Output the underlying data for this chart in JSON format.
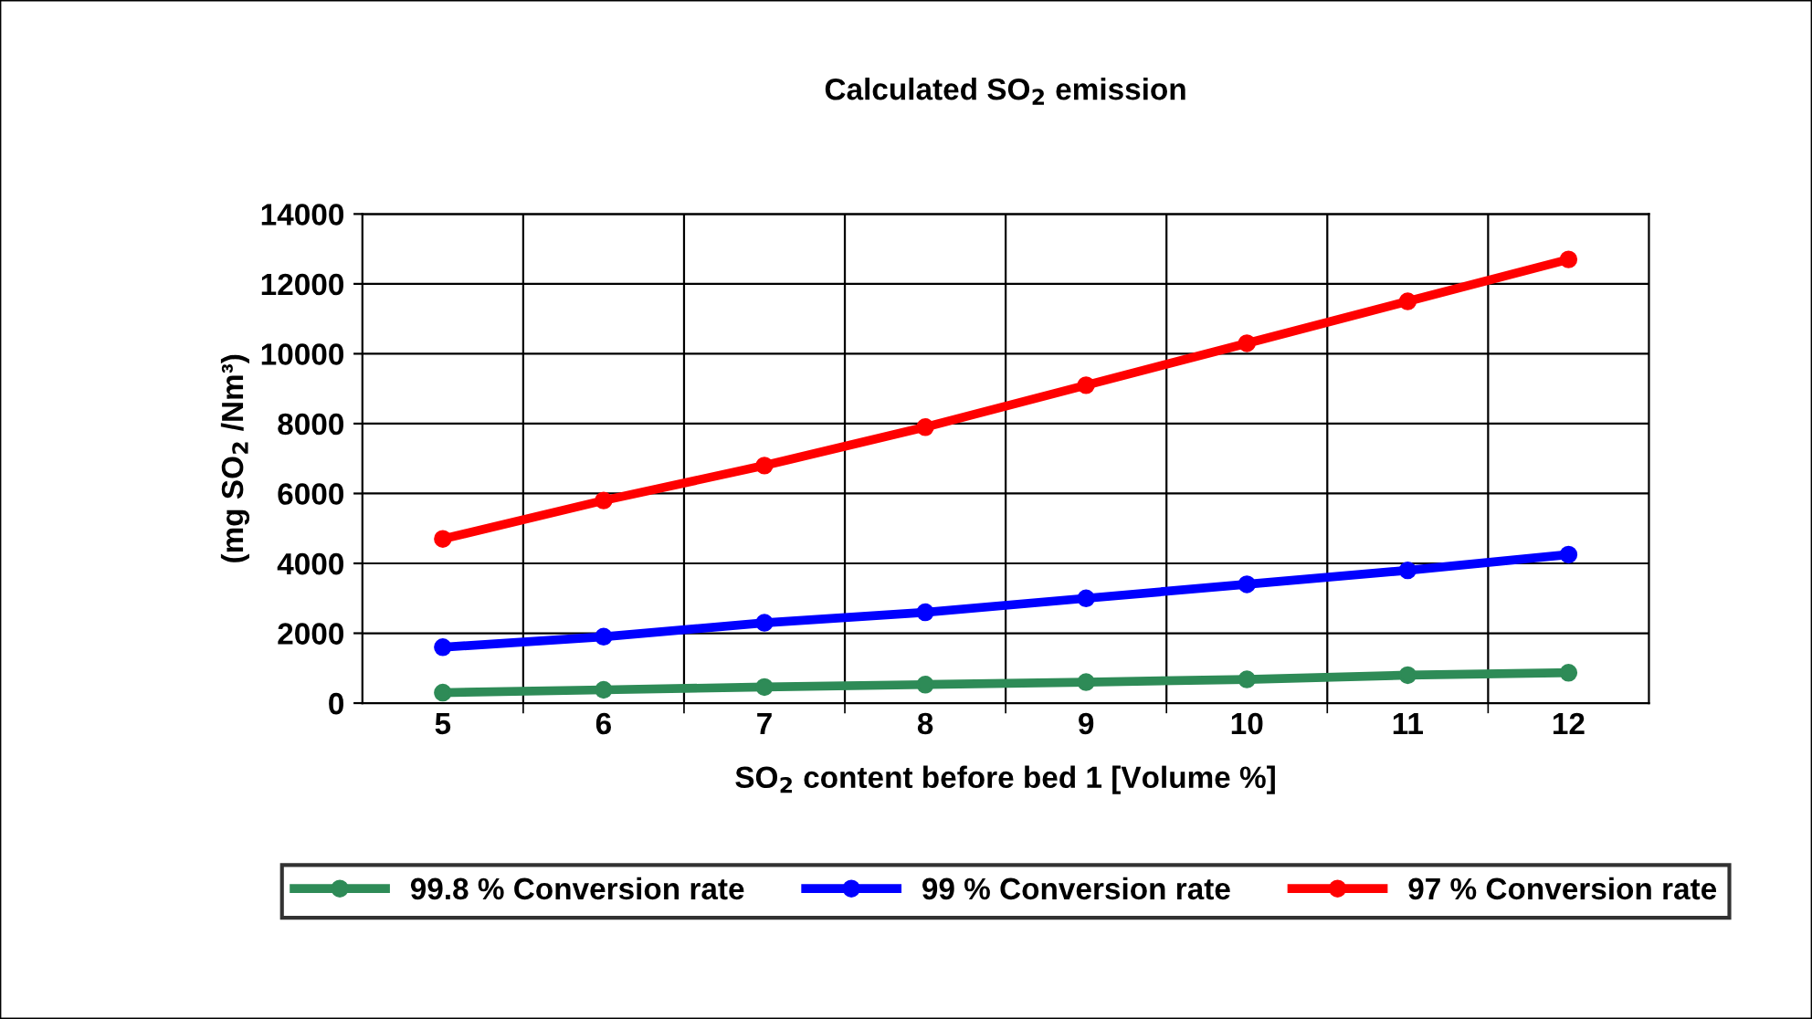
{
  "chart_data": {
    "type": "line",
    "title": "Calculated SO$_{2}$ emission",
    "xlabel": "SO$_{2}$ content before bed 1 [Volume %]",
    "ylabel": "(mg SO$_{2}$ /Nm³)",
    "categories": [
      "5",
      "6",
      "7",
      "8",
      "9",
      "10",
      "11",
      "12"
    ],
    "series": [
      {
        "name": "99.8 % Conversion rate",
        "color": "#2e8b57",
        "values": [
          300,
          380,
          460,
          530,
          600,
          680,
          800,
          870
        ]
      },
      {
        "name": "99 % Conversion rate",
        "color": "#0000ff",
        "values": [
          1600,
          1900,
          2300,
          2600,
          3000,
          3400,
          3800,
          4250
        ]
      },
      {
        "name": "97 % Conversion rate",
        "color": "#ff0000",
        "values": [
          4700,
          5800,
          6800,
          7900,
          9100,
          10300,
          11500,
          12700
        ]
      }
    ],
    "ylim": [
      0,
      14000
    ],
    "yticks": [
      0,
      2000,
      4000,
      6000,
      8000,
      10000,
      12000,
      14000
    ],
    "grid": true,
    "legend": "bottom",
    "marker": "circle",
    "line_style": "solid"
  }
}
